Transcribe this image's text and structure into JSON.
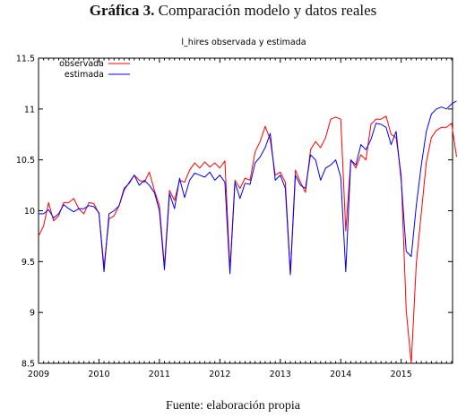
{
  "figure": {
    "title_bold": "Gráfica 3.",
    "title_rest": " Comparación modelo y datos reales",
    "source": "Fuente: elaboración propia"
  },
  "chart_data": {
    "type": "line",
    "title": "l_hires observada y estimada",
    "xlabel": "",
    "ylabel": "",
    "xlim": [
      2009.0,
      2015.85
    ],
    "ylim": [
      8.5,
      11.5
    ],
    "x_ticks": [
      "2009",
      "2010",
      "2011",
      "2012",
      "2013",
      "2014",
      "2015"
    ],
    "y_ticks": [
      "8.5",
      "9",
      "9.5",
      "10",
      "10.5",
      "11",
      "11.5"
    ],
    "grid": false,
    "legend_position": "top-left",
    "x_start": "2009-01",
    "x_step": "month",
    "series": [
      {
        "name": "observada",
        "color": "#ff0000",
        "values": [
          9.75,
          9.85,
          10.08,
          9.9,
          9.95,
          10.08,
          10.08,
          10.12,
          10.02,
          9.97,
          10.08,
          10.07,
          9.97,
          9.45,
          9.92,
          9.95,
          10.05,
          10.2,
          10.28,
          10.35,
          10.3,
          10.28,
          10.38,
          10.2,
          10.05,
          9.45,
          10.2,
          10.1,
          10.3,
          10.28,
          10.4,
          10.47,
          10.42,
          10.48,
          10.43,
          10.47,
          10.42,
          10.49,
          9.42,
          10.3,
          10.22,
          10.32,
          10.3,
          10.58,
          10.68,
          10.83,
          10.7,
          10.35,
          10.38,
          10.28,
          9.38,
          10.4,
          10.28,
          10.18,
          10.6,
          10.68,
          10.62,
          10.72,
          10.9,
          10.92,
          10.9,
          9.8,
          10.5,
          10.42,
          10.55,
          10.5,
          10.85,
          10.9,
          10.9,
          10.93,
          10.75,
          10.72,
          10.35,
          9.02,
          8.5,
          9.48,
          9.98,
          10.48,
          10.72,
          10.79,
          10.82,
          10.82,
          10.86,
          10.53
        ]
      },
      {
        "name": "estimada",
        "color": "#0000ff",
        "values": [
          9.97,
          9.97,
          10.01,
          9.93,
          9.97,
          10.06,
          10.02,
          9.99,
          10.02,
          10.02,
          10.05,
          10.04,
          9.98,
          9.4,
          9.97,
          10.0,
          10.05,
          10.22,
          10.27,
          10.35,
          10.25,
          10.3,
          10.25,
          10.18,
          10.0,
          9.42,
          10.17,
          10.02,
          10.32,
          10.13,
          10.3,
          10.37,
          10.35,
          10.33,
          10.38,
          10.3,
          10.35,
          10.28,
          9.38,
          10.28,
          10.12,
          10.27,
          10.26,
          10.47,
          10.53,
          10.62,
          10.76,
          10.3,
          10.35,
          10.22,
          9.37,
          10.35,
          10.25,
          10.22,
          10.55,
          10.5,
          10.3,
          10.42,
          10.45,
          10.5,
          10.33,
          9.4,
          10.5,
          10.45,
          10.65,
          10.6,
          10.7,
          10.86,
          10.85,
          10.82,
          10.65,
          10.78,
          10.3,
          9.6,
          9.55,
          10.05,
          10.45,
          10.78,
          10.95,
          11.0,
          11.02,
          11.0,
          11.05,
          11.08
        ]
      }
    ]
  }
}
